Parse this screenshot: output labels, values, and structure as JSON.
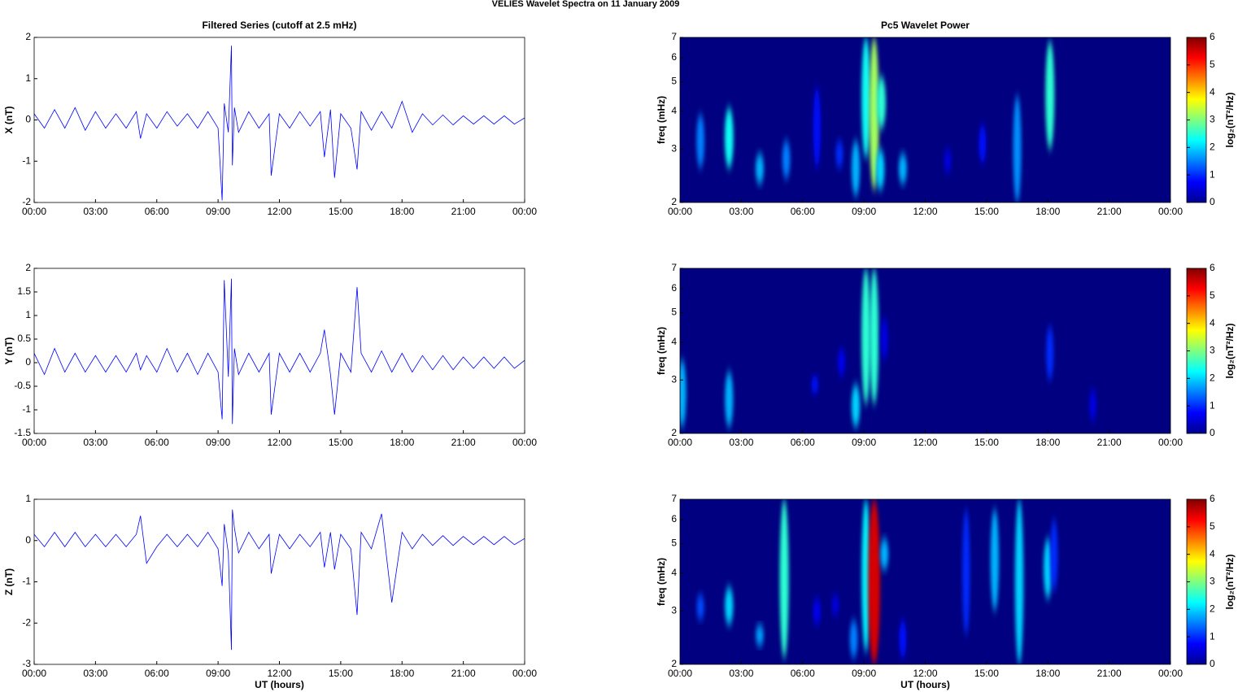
{
  "title": "VELIES Wavelet Spectra on 11 January   2009",
  "chart_data": [
    {
      "type": "line",
      "title": "Filtered Series (cutoff at 2.5 mHz)",
      "ylabel": "X (nT)",
      "color": "#0000ff",
      "xlim": [
        0,
        24
      ],
      "xticks": [
        {
          "value": 0,
          "label": "00:00"
        },
        {
          "value": 3,
          "label": "03:00"
        },
        {
          "value": 6,
          "label": "06:00"
        },
        {
          "value": 9,
          "label": "09:00"
        },
        {
          "value": 12,
          "label": "12:00"
        },
        {
          "value": 15,
          "label": "15:00"
        },
        {
          "value": 18,
          "label": "18:00"
        },
        {
          "value": 21,
          "label": "21:00"
        },
        {
          "value": 24,
          "label": "00:00"
        }
      ],
      "ylim": [
        -2,
        2
      ],
      "yticks": [
        -2,
        -1,
        0,
        1,
        2
      ],
      "x": [
        0,
        0.5,
        1,
        1.5,
        2,
        2.5,
        3,
        3.5,
        4,
        4.5,
        5,
        5.2,
        5.5,
        6,
        6.5,
        7,
        7.5,
        8,
        8.5,
        9,
        9.2,
        9.3,
        9.5,
        9.65,
        9.7,
        9.8,
        10,
        10.5,
        11,
        11.5,
        11.6,
        12,
        12.5,
        13,
        13.5,
        14,
        14.2,
        14.5,
        14.7,
        15,
        15.5,
        15.8,
        16,
        16.5,
        17,
        17.5,
        18,
        18.5,
        19,
        19.5,
        20,
        20.5,
        21,
        21.5,
        22,
        22.5,
        23,
        23.5,
        24
      ],
      "values": [
        0.15,
        -0.2,
        0.25,
        -0.2,
        0.3,
        -0.25,
        0.2,
        -0.2,
        0.15,
        -0.2,
        0.2,
        -0.45,
        0.15,
        -0.2,
        0.2,
        -0.15,
        0.15,
        -0.2,
        0.2,
        -0.2,
        -1.95,
        0.4,
        -0.3,
        1.8,
        -1.1,
        0.3,
        -0.3,
        0.2,
        -0.2,
        0.15,
        -1.35,
        0.15,
        -0.2,
        0.2,
        -0.15,
        0.2,
        -0.9,
        0.25,
        -1.4,
        0.15,
        -0.2,
        -1.2,
        0.2,
        -0.25,
        0.2,
        -0.2,
        0.45,
        -0.3,
        0.15,
        -0.12,
        0.12,
        -0.12,
        0.1,
        -0.1,
        0.1,
        -0.1,
        0.1,
        -0.1,
        0.05
      ]
    },
    {
      "type": "heatmap",
      "title": "Pc5 Wavelet Power",
      "ylabel": "freq (mHz)",
      "log": true,
      "xlim": [
        0,
        24
      ],
      "xticks": [
        {
          "value": 0,
          "label": "00:00"
        },
        {
          "value": 3,
          "label": "03:00"
        },
        {
          "value": 6,
          "label": "06:00"
        },
        {
          "value": 9,
          "label": "09:00"
        },
        {
          "value": 12,
          "label": "12:00"
        },
        {
          "value": 15,
          "label": "15:00"
        },
        {
          "value": 18,
          "label": "18:00"
        },
        {
          "value": 21,
          "label": "21:00"
        },
        {
          "value": 24,
          "label": "00:00"
        }
      ],
      "ylim": [
        2,
        7
      ],
      "yticks": [
        2,
        3,
        4,
        5,
        6,
        7
      ],
      "colorbar": {
        "label": "log₂(nT²/Hz)",
        "lim": [
          0,
          6
        ],
        "ticks": [
          0,
          1,
          2,
          3,
          4,
          5,
          6
        ]
      },
      "x": [
        1.0,
        2.4,
        3.9,
        5.2,
        6.7,
        7.8,
        8.6,
        9.1,
        9.5,
        9.85,
        9.8,
        10.9,
        13.1,
        14.8,
        16.5,
        18.1
      ],
      "ylow": [
        2.6,
        2.6,
        2.3,
        2.4,
        2.6,
        2.6,
        2.1,
        2.8,
        2.2,
        3.5,
        2.2,
        2.3,
        2.5,
        2.7,
        2.0,
        3.0
      ],
      "yhigh": [
        3.9,
        4.1,
        2.9,
        3.2,
        4.8,
        3.2,
        3.2,
        7,
        7,
        5.2,
        3.0,
        2.9,
        3.0,
        3.6,
        4.5,
        6.8
      ],
      "values": [
        1.5,
        2.3,
        1.8,
        1.5,
        0.8,
        1,
        1.8,
        2.3,
        3.2,
        2.5,
        2,
        1.8,
        0.6,
        0.8,
        1.6,
        2.5
      ]
    },
    {
      "type": "line",
      "ylabel": "Y (nT)",
      "color": "#0000ff",
      "xlim": [
        0,
        24
      ],
      "xticks": [
        {
          "value": 0,
          "label": "00:00"
        },
        {
          "value": 3,
          "label": "03:00"
        },
        {
          "value": 6,
          "label": "06:00"
        },
        {
          "value": 9,
          "label": "09:00"
        },
        {
          "value": 12,
          "label": "12:00"
        },
        {
          "value": 15,
          "label": "15:00"
        },
        {
          "value": 18,
          "label": "18:00"
        },
        {
          "value": 21,
          "label": "21:00"
        },
        {
          "value": 24,
          "label": "00:00"
        }
      ],
      "ylim": [
        -1.5,
        2
      ],
      "yticks": [
        -1.5,
        -1,
        -0.5,
        0,
        0.5,
        1,
        1.5,
        2
      ],
      "x": [
        0,
        0.5,
        1,
        1.5,
        2,
        2.5,
        3,
        3.5,
        4,
        4.5,
        5,
        5.2,
        5.5,
        6,
        6.5,
        7,
        7.5,
        8,
        8.5,
        9,
        9.2,
        9.3,
        9.5,
        9.65,
        9.7,
        9.8,
        10,
        10.5,
        11,
        11.5,
        11.6,
        12,
        12.5,
        13,
        13.5,
        14,
        14.2,
        14.5,
        14.7,
        15,
        15.5,
        15.8,
        16,
        16.5,
        17,
        17.5,
        18,
        18.5,
        19,
        19.5,
        20,
        20.5,
        21,
        21.5,
        22,
        22.5,
        23,
        23.5,
        24
      ],
      "values": [
        0.2,
        -0.25,
        0.3,
        -0.2,
        0.2,
        -0.2,
        0.15,
        -0.2,
        0.15,
        -0.2,
        0.2,
        -0.15,
        0.15,
        -0.2,
        0.3,
        -0.2,
        0.2,
        -0.25,
        0.2,
        -0.2,
        -1.2,
        1.75,
        -0.3,
        1.78,
        -1.3,
        0.3,
        -0.25,
        0.2,
        -0.2,
        0.2,
        -1.1,
        0.2,
        -0.2,
        0.2,
        -0.2,
        0.2,
        0.7,
        -0.25,
        -1.1,
        0.2,
        -0.2,
        1.6,
        0.2,
        -0.2,
        0.25,
        -0.2,
        0.2,
        -0.2,
        0.15,
        -0.15,
        0.15,
        -0.15,
        0.12,
        -0.12,
        0.12,
        -0.12,
        0.12,
        -0.12,
        0.05
      ]
    },
    {
      "type": "heatmap",
      "ylabel": "freq (mHz)",
      "log": true,
      "xlim": [
        0,
        24
      ],
      "xticks": [
        {
          "value": 0,
          "label": "00:00"
        },
        {
          "value": 3,
          "label": "03:00"
        },
        {
          "value": 6,
          "label": "06:00"
        },
        {
          "value": 9,
          "label": "09:00"
        },
        {
          "value": 12,
          "label": "12:00"
        },
        {
          "value": 15,
          "label": "15:00"
        },
        {
          "value": 18,
          "label": "18:00"
        },
        {
          "value": 21,
          "label": "21:00"
        },
        {
          "value": 24,
          "label": "00:00"
        }
      ],
      "ylim": [
        2,
        7
      ],
      "yticks": [
        2,
        3,
        4,
        5,
        6,
        7
      ],
      "colorbar": {
        "label": "log₂(nT²/Hz)",
        "lim": [
          0,
          6
        ],
        "ticks": [
          0,
          1,
          2,
          3,
          4,
          5,
          6
        ]
      },
      "x": [
        0.1,
        2.4,
        6.6,
        7.9,
        8.6,
        9.1,
        9.5,
        10,
        18.1,
        20.2
      ],
      "ylow": [
        2.1,
        2.1,
        2.7,
        3.1,
        2.1,
        2.5,
        2.5,
        3.5,
        3.0,
        2.2
      ],
      "yhigh": [
        3.5,
        3.2,
        3.1,
        3.8,
        2.9,
        7,
        7,
        4.8,
        4.5,
        2.8
      ],
      "values": [
        1.8,
        1.8,
        0.8,
        0.7,
        2,
        2.5,
        2.5,
        0.6,
        1,
        0.6
      ]
    },
    {
      "type": "line",
      "ylabel": "Z (nT)",
      "xlabel": "UT (hours)",
      "color": "#0000ff",
      "xlim": [
        0,
        24
      ],
      "xticks": [
        {
          "value": 0,
          "label": "00:00"
        },
        {
          "value": 3,
          "label": "03:00"
        },
        {
          "value": 6,
          "label": "06:00"
        },
        {
          "value": 9,
          "label": "09:00"
        },
        {
          "value": 12,
          "label": "12:00"
        },
        {
          "value": 15,
          "label": "15:00"
        },
        {
          "value": 18,
          "label": "18:00"
        },
        {
          "value": 21,
          "label": "21:00"
        },
        {
          "value": 24,
          "label": "00:00"
        }
      ],
      "ylim": [
        -3,
        1
      ],
      "yticks": [
        -3,
        -2,
        -1,
        0,
        1
      ],
      "x": [
        0,
        0.5,
        1,
        1.5,
        2,
        2.5,
        3,
        3.5,
        4,
        4.5,
        5,
        5.2,
        5.5,
        6,
        6.5,
        7,
        7.5,
        8,
        8.5,
        9,
        9.2,
        9.3,
        9.5,
        9.65,
        9.7,
        9.8,
        10,
        10.5,
        11,
        11.5,
        11.6,
        12,
        12.5,
        13,
        13.5,
        14,
        14.2,
        14.5,
        14.7,
        15,
        15.5,
        15.8,
        16,
        16.5,
        17,
        17.5,
        18,
        18.5,
        19,
        19.5,
        20,
        20.5,
        21,
        21.5,
        22,
        22.5,
        23,
        23.5,
        24
      ],
      "values": [
        0.15,
        -0.15,
        0.2,
        -0.15,
        0.2,
        -0.15,
        0.15,
        -0.15,
        0.15,
        -0.15,
        0.15,
        0.6,
        -0.55,
        -0.15,
        0.15,
        -0.15,
        0.15,
        -0.15,
        0.2,
        -0.2,
        -1.1,
        0.4,
        -0.3,
        -2.65,
        0.75,
        0.3,
        -0.3,
        0.2,
        -0.2,
        0.15,
        -0.8,
        0.15,
        -0.2,
        0.15,
        -0.15,
        0.2,
        -0.65,
        0.2,
        -0.7,
        0.15,
        -0.2,
        -1.8,
        0.2,
        -0.2,
        0.65,
        -1.5,
        0.2,
        -0.2,
        0.15,
        -0.12,
        0.12,
        -0.12,
        0.1,
        -0.1,
        0.1,
        -0.1,
        0.1,
        -0.1,
        0.05
      ]
    },
    {
      "type": "heatmap",
      "ylabel": "freq (mHz)",
      "xlabel": "UT (hours)",
      "log": true,
      "xlim": [
        0,
        24
      ],
      "xticks": [
        {
          "value": 0,
          "label": "00:00"
        },
        {
          "value": 3,
          "label": "03:00"
        },
        {
          "value": 6,
          "label": "06:00"
        },
        {
          "value": 9,
          "label": "09:00"
        },
        {
          "value": 12,
          "label": "12:00"
        },
        {
          "value": 15,
          "label": "15:00"
        },
        {
          "value": 18,
          "label": "18:00"
        },
        {
          "value": 21,
          "label": "21:00"
        },
        {
          "value": 24,
          "label": "00:00"
        }
      ],
      "ylim": [
        2,
        7
      ],
      "yticks": [
        2,
        3,
        4,
        5,
        6,
        7
      ],
      "colorbar": {
        "label": "log₂(nT²/Hz)",
        "lim": [
          0,
          6
        ],
        "ticks": [
          0,
          1,
          2,
          3,
          4,
          5,
          6
        ]
      },
      "x": [
        1.0,
        2.4,
        3.9,
        5.1,
        6.7,
        7.6,
        8.5,
        9.1,
        9.5,
        10,
        10.9,
        14,
        15.4,
        16.6,
        18,
        18.3
      ],
      "ylow": [
        2.8,
        2.7,
        2.3,
        2.1,
        2.7,
        2.9,
        2.1,
        2.2,
        2.0,
        4.1,
        2.1,
        2.5,
        3.0,
        2.0,
        3.3,
        3.5
      ],
      "yhigh": [
        3.4,
        3.6,
        2.7,
        7,
        3.3,
        3.4,
        2.8,
        7,
        7,
        5.2,
        2.8,
        6.5,
        6.5,
        7,
        5.2,
        6
      ],
      "values": [
        1.2,
        2,
        1.7,
        2.5,
        0.7,
        0.6,
        1.5,
        2.2,
        5.5,
        1.8,
        0.8,
        1,
        1.8,
        2,
        2,
        1
      ]
    }
  ]
}
